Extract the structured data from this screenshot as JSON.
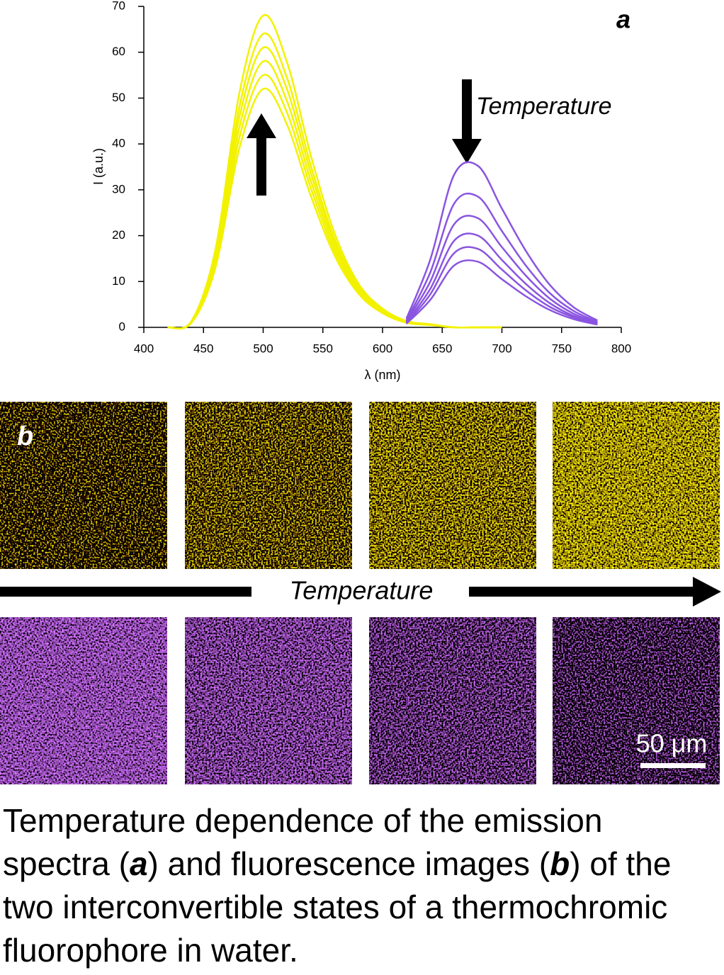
{
  "chart_data": {
    "type": "line",
    "panel_label": "a",
    "annotation": "Temperature",
    "xlabel": "λ (nm)",
    "ylabel": "I (a.u.)",
    "x": [
      420,
      440,
      460,
      480,
      500,
      520,
      540,
      560,
      580,
      600,
      620,
      640,
      660,
      680,
      700,
      720,
      740,
      760,
      780,
      800
    ],
    "xlim": [
      400,
      800
    ],
    "xticks": [
      400,
      450,
      500,
      550,
      600,
      650,
      700,
      750,
      800
    ],
    "ylim": [
      0,
      70
    ],
    "yticks": [
      0,
      10,
      20,
      30,
      40,
      50,
      60,
      70
    ],
    "series": [
      {
        "color": "#f2f200",
        "values": [
          0,
          1.0,
          13,
          39,
          52,
          44.2,
          28.6,
          15.6,
          7.3,
          3.1,
          1.0,
          0.5,
          0,
          0,
          0,
          null,
          null,
          null,
          null,
          null
        ]
      },
      {
        "color": "#f2f200",
        "values": [
          0,
          1.1,
          13.8,
          41.3,
          55,
          46.8,
          30.3,
          16.5,
          7.7,
          3.3,
          1.1,
          0.6,
          0,
          0,
          0,
          null,
          null,
          null,
          null,
          null
        ]
      },
      {
        "color": "#f2f200",
        "values": [
          0,
          1.2,
          14.5,
          43.5,
          58,
          49.3,
          31.9,
          17.4,
          8.1,
          3.5,
          1.2,
          0.6,
          0,
          0,
          0,
          null,
          null,
          null,
          null,
          null
        ]
      },
      {
        "color": "#f2f200",
        "values": [
          0,
          1.2,
          15.3,
          45.8,
          61,
          51.9,
          33.6,
          18.3,
          8.5,
          3.7,
          1.2,
          0.6,
          0,
          0,
          0,
          null,
          null,
          null,
          null,
          null
        ]
      },
      {
        "color": "#f2f200",
        "values": [
          0,
          1.3,
          16,
          48,
          64,
          54.4,
          35.2,
          19.2,
          9,
          3.8,
          1.3,
          0.6,
          0,
          0,
          0,
          null,
          null,
          null,
          null,
          null
        ]
      },
      {
        "color": "#f2f200",
        "values": [
          0,
          1.4,
          17,
          51,
          68,
          57.8,
          37.4,
          20.4,
          9.5,
          4.1,
          1.4,
          0.7,
          0,
          0,
          0,
          null,
          null,
          null,
          null,
          null
        ]
      },
      {
        "color": "#8a55e0",
        "values": [
          null,
          null,
          null,
          null,
          null,
          null,
          null,
          null,
          null,
          null,
          1.9,
          14.8,
          33.3,
          35.2,
          25.9,
          16.7,
          9.3,
          4.4,
          1.5,
          null
        ]
      },
      {
        "color": "#8a55e0",
        "values": [
          null,
          null,
          null,
          null,
          null,
          null,
          null,
          null,
          null,
          null,
          1.5,
          12,
          27,
          28.5,
          21,
          13.5,
          7.5,
          3.6,
          1.2,
          null
        ]
      },
      {
        "color": "#8a55e0",
        "values": [
          null,
          null,
          null,
          null,
          null,
          null,
          null,
          null,
          null,
          null,
          1.3,
          10,
          22.5,
          23.8,
          17.5,
          11.3,
          6.3,
          3,
          1,
          null
        ]
      },
      {
        "color": "#8a55e0",
        "values": [
          null,
          null,
          null,
          null,
          null,
          null,
          null,
          null,
          null,
          null,
          1.1,
          8.4,
          18.9,
          20,
          14.7,
          9.5,
          5.3,
          2.5,
          0.8,
          null
        ]
      },
      {
        "color": "#8a55e0",
        "values": [
          null,
          null,
          null,
          null,
          null,
          null,
          null,
          null,
          null,
          null,
          0.9,
          7.2,
          16.2,
          17.1,
          12.6,
          8.1,
          4.5,
          2.2,
          0.7,
          null
        ]
      },
      {
        "color": "#8a55e0",
        "values": [
          null,
          null,
          null,
          null,
          null,
          null,
          null,
          null,
          null,
          null,
          0.8,
          6,
          13.5,
          14.3,
          10.5,
          6.8,
          3.8,
          1.8,
          0.6,
          null
        ]
      }
    ]
  },
  "images": {
    "panel_label": "b",
    "arrow_label": "Temperature",
    "scale_bar": "50 μm"
  },
  "caption": [
    "Temperature dependence of the emission spectra (",
    "a",
    ") and fluorescence images (",
    "b",
    ") of the two interconvertible states of a thermochromic fluorophore in water."
  ]
}
